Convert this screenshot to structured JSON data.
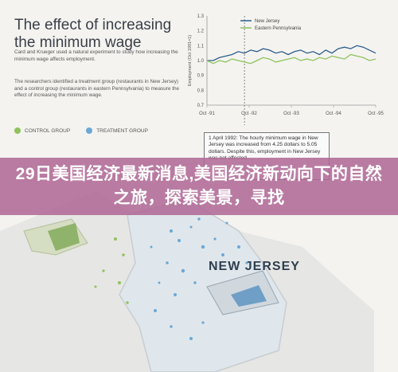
{
  "article": {
    "heading": "The effect of increasing the minimum wage",
    "paragraph_1": "Card and Krueger used a natural experiment to study how increasing the minimum wage affects employment.",
    "paragraph_2": "The researchers identified a treatment group (restaurants in New Jersey) and a control group (restaurants in eastern Pennsylvania) to measure the effect of increasing the minimum wage."
  },
  "legend": {
    "control_label": "CONTROL GROUP",
    "treatment_label": "TREATMENT GROUP",
    "control_color": "#8fc25b",
    "treatment_color": "#6aa8d6"
  },
  "chart_data": {
    "type": "line",
    "ylabel": "Employment (Oct 1991=1)",
    "ylim": [
      0.7,
      1.3
    ],
    "yticks": [
      "1.3",
      "1.2",
      "1.1",
      "1.0",
      "0.9",
      "0.8",
      "0.7"
    ],
    "x_tick_labels": [
      "Oct -91",
      "Oct -92",
      "Oct -93",
      "Oct -94",
      "Oct -95"
    ],
    "series": [
      {
        "name": "New Jersey",
        "color": "#2c5e8c",
        "values": [
          1.0,
          1.0,
          1.02,
          1.03,
          1.04,
          1.06,
          1.05,
          1.07,
          1.06,
          1.08,
          1.07,
          1.05,
          1.06,
          1.04,
          1.06,
          1.07,
          1.05,
          1.06,
          1.04,
          1.07,
          1.05,
          1.08,
          1.09,
          1.08,
          1.1,
          1.09,
          1.07,
          1.05
        ]
      },
      {
        "name": "Eastern Pennsylvania",
        "color": "#8fc25b",
        "values": [
          1.0,
          0.98,
          1.0,
          0.99,
          1.01,
          1.0,
          0.99,
          0.98,
          1.0,
          1.02,
          1.01,
          0.99,
          1.0,
          1.01,
          1.02,
          1.0,
          1.01,
          1.0,
          1.02,
          1.01,
          1.03,
          1.02,
          1.01,
          1.04,
          1.03,
          1.02,
          1.0,
          1.01
        ]
      }
    ],
    "event_index": 6
  },
  "annotation": {
    "text": "1 April 1992: The hourly minimum wage in New Jersey was increased from 4.25 dollars to 5.05 dollars. Despite this, employment in New Jersey was not affected."
  },
  "banner": {
    "text": "29日美国经济最新消息,美国经济新动向下的自然之旅，探索美景，寻找"
  },
  "map": {
    "label": "NEW JERSEY"
  }
}
